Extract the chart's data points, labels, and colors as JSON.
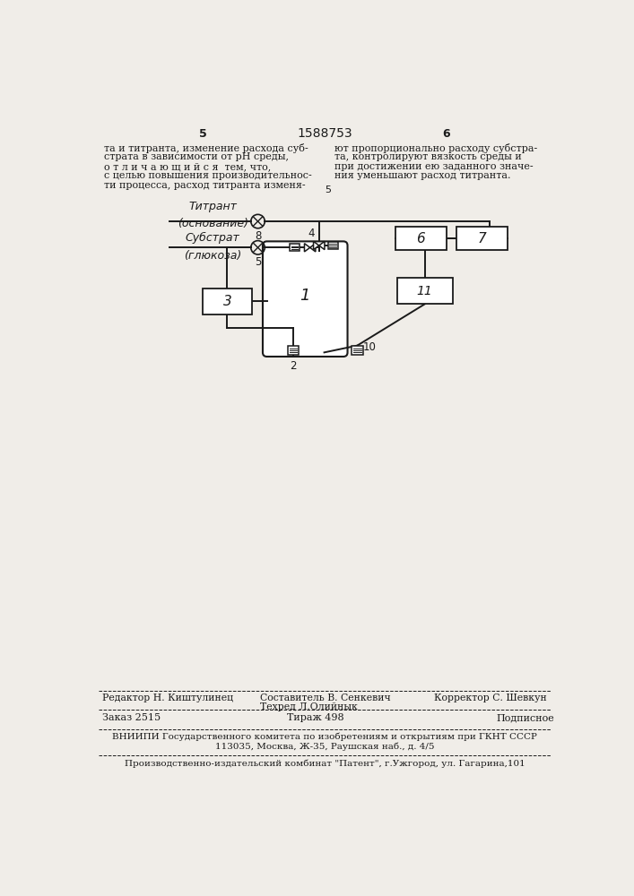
{
  "bg_color": "#f0ede8",
  "line_color": "#1a1a1a",
  "text_color": "#1a1a1a",
  "page_number_left": "5",
  "page_number_center": "1588753",
  "page_number_right": "6",
  "left_text_lines": [
    "та и титранта, изменение расхода суб-",
    "страта в зависимости от pH среды,",
    "о т л и ч а ю щ и й с я  тем, что,",
    "с целью повышения производительнос-",
    "ти процесса, расход титранта изменя-"
  ],
  "right_text_lines": [
    "ют пропорционально расходу субстра-",
    "та, контролируют вязкость среды и",
    "при достижении ею заданного значе-",
    "ния уменьшают расход титранта."
  ],
  "center_marker": "5",
  "label_titrant_line1": "Титрант",
  "label_titrant_line2": "(основание)",
  "label_substrate_line1": "Субстрат",
  "label_substrate_line2": "(глюкоза)",
  "footer_editor": "Редактор Н. Киштулинец",
  "footer_composer": "Составитель В. Сенкевич",
  "footer_tech": "Техред Л.Олийнык",
  "footer_corrector": "Корректор С. Шевкун",
  "footer_order": "Заказ 2515",
  "footer_edition": "Тираж 498",
  "footer_subscription": "Подписное",
  "footer_vnipi": "ВНИИПИ Государственного комитета по изобретениям и открытиям при ГКНТ СССР",
  "footer_address": "113035, Москва, Ж-35, Раушская наб., д. 4/5",
  "footer_production": "Производственно-издательский комбинат \"Патент\", г.Ужгород, ул. Гагарина,101"
}
